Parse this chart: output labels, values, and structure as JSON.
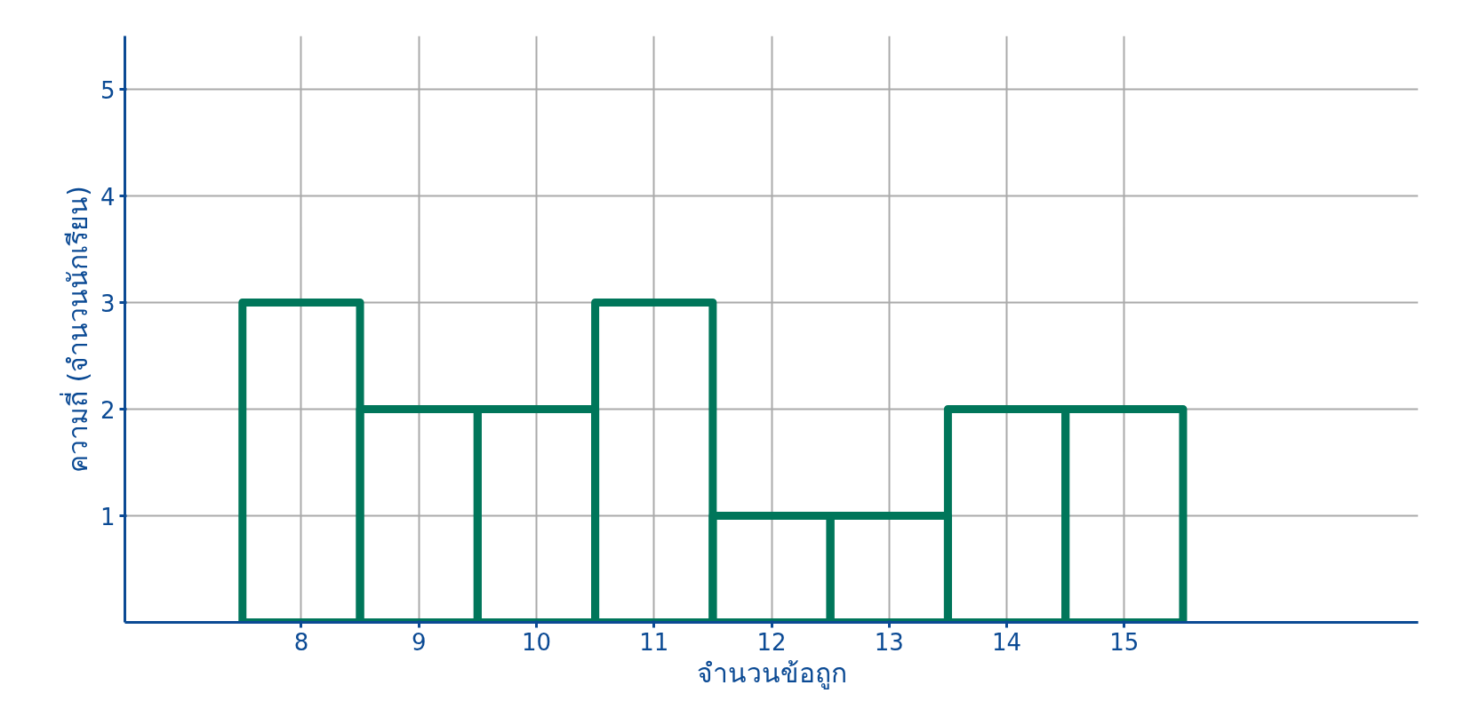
{
  "chart_data": {
    "type": "histogram",
    "xlabel": "จำนวนข้อถูก",
    "ylabel": "ความถี่ (จำนวนนักเรียน)",
    "bins": [
      7.5,
      8.5,
      9.5,
      10.5,
      11.5,
      12.5,
      13.5,
      14.5,
      15.5
    ],
    "values": [
      3,
      2,
      2,
      3,
      1,
      1,
      2,
      2
    ],
    "color": "#00765a",
    "xlim": [
      6.5,
      17.5
    ],
    "ylim": [
      0,
      5.5
    ],
    "xticks": [
      8,
      9,
      10,
      11,
      12,
      13,
      14,
      15
    ],
    "yticks": [
      1,
      2,
      3,
      4,
      5
    ],
    "grid": true
  }
}
